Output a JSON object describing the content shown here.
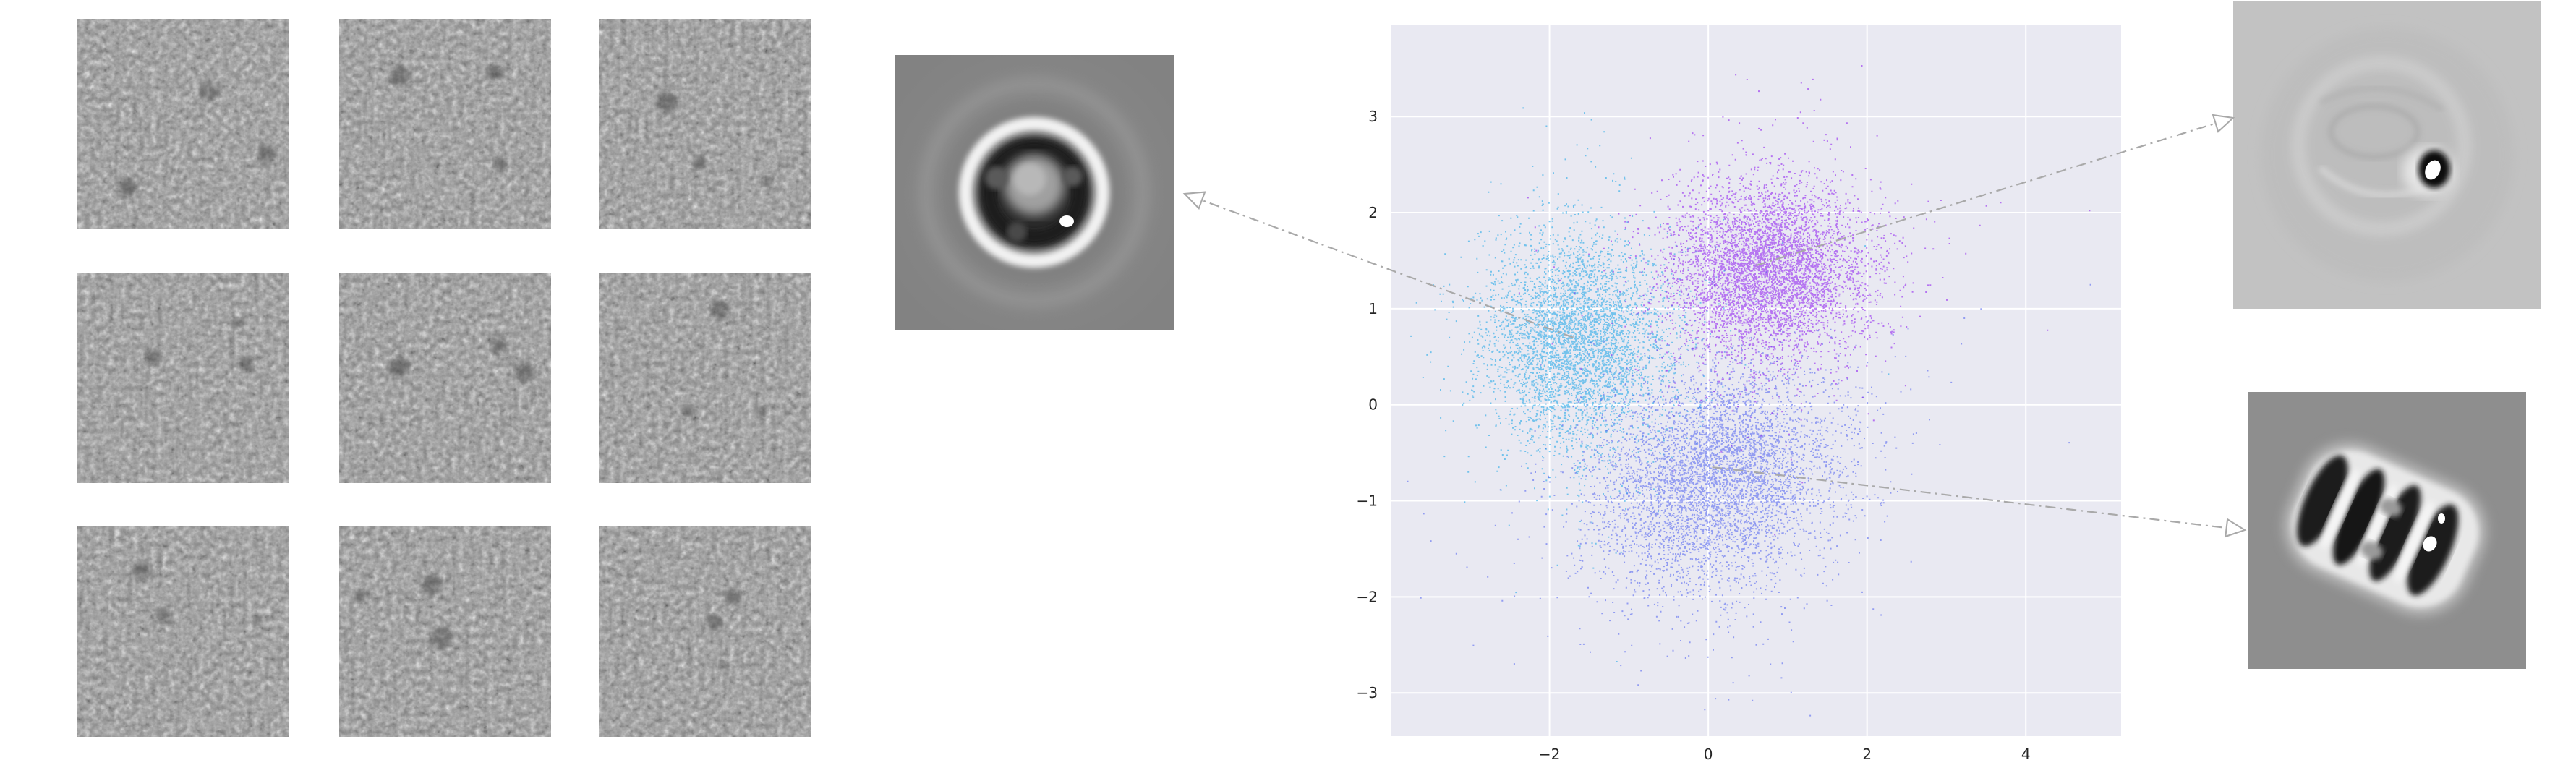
{
  "chart_data": {
    "type": "scatter",
    "title": "",
    "xlabel": "",
    "ylabel": "",
    "xlim": [
      -4.0,
      5.2
    ],
    "ylim": [
      -3.45,
      3.95
    ],
    "x_ticks": [
      -2,
      0,
      2,
      4
    ],
    "y_ticks": [
      -3,
      -2,
      -1,
      0,
      1,
      2,
      3
    ],
    "grid": true,
    "background": "#e9e9f2",
    "grid_color": "#ffffff",
    "series": [
      {
        "color": "#4b5cf0",
        "center": [
          0.1,
          -0.75
        ],
        "approx_points": 9000
      },
      {
        "color": "#12a3e8",
        "center": [
          -1.65,
          0.65
        ],
        "approx_points": 4500
      },
      {
        "color": "#8a14f0",
        "center": [
          0.75,
          1.4
        ],
        "approx_points": 6000
      }
    ]
  },
  "particle_grid": {
    "rows": 3,
    "cols": 3,
    "icon": "noisy-micrograph-tile"
  },
  "class_averages": [
    {
      "icon": "ring-particle-top-view",
      "linked_cluster": 1,
      "cluster_point": [
        -1.7,
        0.7
      ]
    },
    {
      "icon": "faint-particle-side-view",
      "linked_cluster": 2,
      "cluster_point": [
        0.6,
        1.45
      ]
    },
    {
      "icon": "striped-particle-side-view",
      "linked_cluster": 0,
      "cluster_point": [
        0.05,
        -0.65
      ]
    }
  ],
  "colors": {
    "arrow": "#a9a9a9",
    "tile_gray": "#8c8c8c"
  }
}
